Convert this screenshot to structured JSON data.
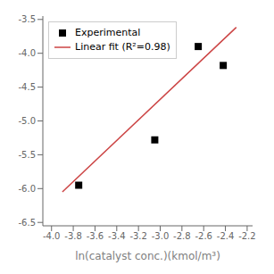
{
  "chart_data": {
    "type": "scatter",
    "xlabel": "ln(catalyst conc.)(kmol/m³)",
    "xlim": [
      -4.08,
      -2.15
    ],
    "xticks": [
      {
        "value": -4.0,
        "label": "-4.0"
      },
      -3.8,
      -3.6,
      -3.4,
      -3.2,
      {
        "value": -3.0,
        "label": "-3.0"
      },
      -2.8,
      -2.6,
      -2.4,
      -2.2
    ],
    "ylim": [
      -6.55,
      -3.45
    ],
    "yticks": [
      -6.5,
      {
        "value": -6.0,
        "label": "-6.0"
      },
      -5.5,
      {
        "value": -5.0,
        "label": "-5.0"
      },
      -4.5,
      {
        "value": -4.0,
        "label": "-4.0"
      },
      -3.5
    ],
    "legend": "upper left",
    "series": [
      {
        "name": "Experimental",
        "type": "scatter",
        "marker": "square",
        "color": "black",
        "x": [
          -3.75,
          -3.05,
          -2.65,
          -2.42
        ],
        "values": [
          -5.95,
          -5.28,
          -3.9,
          -4.18
        ]
      },
      {
        "name": "Linear fit (R²=0.98)",
        "type": "line",
        "color": "#cc4444",
        "x": [
          -3.9,
          -2.3
        ],
        "values": [
          -6.048,
          -3.616
        ]
      }
    ]
  }
}
